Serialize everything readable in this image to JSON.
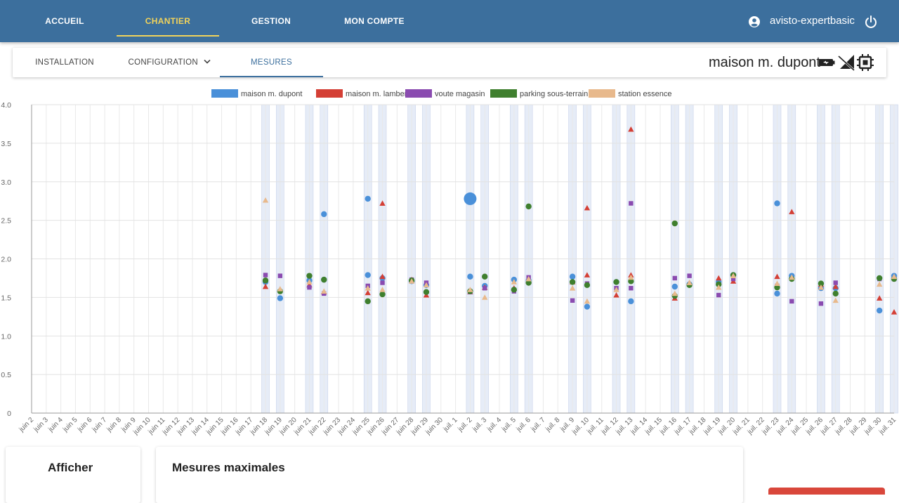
{
  "nav": {
    "items": [
      {
        "label": "ACCUEIL",
        "active": false
      },
      {
        "label": "CHANTIER",
        "active": true
      },
      {
        "label": "GESTION",
        "active": false
      },
      {
        "label": "MON COMPTE",
        "active": false
      }
    ],
    "user": "avisto-expertbasic",
    "icons": [
      "account-circle-icon",
      "power-icon"
    ]
  },
  "subnav": {
    "tabs": [
      {
        "label": "INSTALLATION",
        "active": false
      },
      {
        "label": "CONFIGURATION",
        "active": false,
        "dropdown": true
      },
      {
        "label": "MESURES",
        "active": true
      }
    ],
    "site_name": "maison m. dupont",
    "status_icons": [
      "battery-icon",
      "no-signal-icon",
      "chip-icon"
    ]
  },
  "chart_data": {
    "type": "scatter",
    "ylim": [
      0,
      4.0
    ],
    "yticks": [
      "0",
      "0.5",
      "1.0",
      "1.5",
      "2.0",
      "2.5",
      "3.0",
      "3.5",
      "4.0"
    ],
    "grid": true,
    "legend_position": "top",
    "x_labels": [
      "juin 2",
      "juin 3",
      "juin 4",
      "juin 5",
      "juin 6",
      "juin 7",
      "juin 8",
      "juin 9",
      "juin 10",
      "juin 11",
      "juin 12",
      "juin 13",
      "juin 14",
      "juin 15",
      "juin 16",
      "juin 17",
      "juin 18",
      "juin 19",
      "juin 20",
      "juin 21",
      "juin 22",
      "juin 23",
      "juin 24",
      "juin 25",
      "juin 26",
      "juin 27",
      "juin 28",
      "juin 29",
      "juin 30",
      "juil. 1",
      "juil. 2",
      "juil. 3",
      "juil. 4",
      "juil. 5",
      "juil. 6",
      "juil. 7",
      "juil. 8",
      "juil. 9",
      "juil. 10",
      "juil. 11",
      "juil. 12",
      "juil. 13",
      "juil. 14",
      "juil. 15",
      "juil. 16",
      "juil. 17",
      "juil. 18",
      "juil. 19",
      "juil. 20",
      "juil. 21",
      "juil. 22",
      "juil. 23",
      "juil. 24",
      "juil. 25",
      "juil. 26",
      "juil. 27",
      "juil. 28",
      "juil. 29",
      "juil. 30",
      "juil. 31"
    ],
    "highlight_days": [
      "juin 18",
      "juin 19",
      "juin 21",
      "juin 22",
      "juin 25",
      "juin 26",
      "juin 28",
      "juin 29",
      "juil. 2",
      "juil. 3",
      "juil. 5",
      "juil. 6",
      "juil. 9",
      "juil. 10",
      "juil. 12",
      "juil. 13",
      "juil. 16",
      "juil. 17",
      "juil. 19",
      "juil. 20",
      "juil. 23",
      "juil. 24",
      "juil. 26",
      "juil. 27",
      "juil. 30",
      "juil. 31"
    ],
    "series": [
      {
        "name": "maison m. dupont",
        "color": "#4a90d9",
        "marker": "circle",
        "points": [
          [
            "juin 18",
            1.7
          ],
          [
            "juin 19",
            1.49
          ],
          [
            "juin 21",
            1.72
          ],
          [
            "juin 22",
            2.58
          ],
          [
            "juin 22",
            1.73
          ],
          [
            "juin 25",
            2.78
          ],
          [
            "juin 25",
            1.79
          ],
          [
            "juin 26",
            1.75
          ],
          [
            "juin 28",
            1.71
          ],
          [
            "juin 29",
            1.66
          ],
          [
            "juil. 2",
            2.78,
            "big"
          ],
          [
            "juil. 2",
            1.77
          ],
          [
            "juil. 3",
            1.65
          ],
          [
            "juil. 5",
            1.73
          ],
          [
            "juil. 6",
            1.72
          ],
          [
            "juil. 9",
            1.77
          ],
          [
            "juil. 10",
            1.38
          ],
          [
            "juil. 12",
            1.7
          ],
          [
            "juil. 13",
            1.45
          ],
          [
            "juil. 16",
            1.64
          ],
          [
            "juil. 17",
            1.67
          ],
          [
            "juil. 19",
            1.7
          ],
          [
            "juil. 20",
            1.79
          ],
          [
            "juil. 23",
            2.72
          ],
          [
            "juil. 23",
            1.55
          ],
          [
            "juil. 24",
            1.78
          ],
          [
            "juil. 26",
            1.62
          ],
          [
            "juil. 27",
            1.62
          ],
          [
            "juil. 30",
            1.33
          ],
          [
            "juil. 31",
            1.78
          ]
        ]
      },
      {
        "name": "maison m. lambert",
        "color": "#d43f35",
        "marker": "triangle",
        "points": [
          [
            "juin 18",
            1.64
          ],
          [
            "juin 19",
            1.6
          ],
          [
            "juin 21",
            1.66
          ],
          [
            "juin 22",
            1.57
          ],
          [
            "juin 25",
            1.56
          ],
          [
            "juin 26",
            2.72
          ],
          [
            "juin 26",
            1.77
          ],
          [
            "juin 28",
            1.73
          ],
          [
            "juin 29",
            1.53
          ],
          [
            "juil. 2",
            1.57
          ],
          [
            "juil. 3",
            1.63
          ],
          [
            "juil. 5",
            1.62
          ],
          [
            "juil. 6",
            1.71
          ],
          [
            "juil. 9",
            1.7
          ],
          [
            "juil. 10",
            2.66
          ],
          [
            "juil. 10",
            1.79
          ],
          [
            "juil. 12",
            1.53
          ],
          [
            "juil. 13",
            3.68
          ],
          [
            "juil. 13",
            1.79
          ],
          [
            "juil. 16",
            1.49
          ],
          [
            "juil. 17",
            1.69
          ],
          [
            "juil. 19",
            1.75
          ],
          [
            "juil. 20",
            1.71
          ],
          [
            "juil. 23",
            1.77
          ],
          [
            "juil. 24",
            2.61
          ],
          [
            "juil. 26",
            1.67
          ],
          [
            "juil. 27",
            1.64
          ],
          [
            "juil. 30",
            1.49
          ],
          [
            "juil. 31",
            1.31
          ]
        ]
      },
      {
        "name": "voute magasin",
        "color": "#8a4bb0",
        "marker": "square",
        "points": [
          [
            "juin 18",
            1.79
          ],
          [
            "juin 19",
            1.78
          ],
          [
            "juin 21",
            1.63
          ],
          [
            "juin 22",
            1.55
          ],
          [
            "juin 25",
            1.65
          ],
          [
            "juin 26",
            1.69
          ],
          [
            "juin 28",
            1.73
          ],
          [
            "juin 29",
            1.69
          ],
          [
            "juil. 2",
            1.57
          ],
          [
            "juil. 3",
            1.62
          ],
          [
            "juil. 5",
            1.58
          ],
          [
            "juil. 6",
            1.76
          ],
          [
            "juil. 9",
            1.46
          ],
          [
            "juil. 10",
            1.68
          ],
          [
            "juil. 12",
            1.62
          ],
          [
            "juil. 13",
            2.72
          ],
          [
            "juil. 13",
            1.62
          ],
          [
            "juil. 16",
            1.75
          ],
          [
            "juil. 17",
            1.78
          ],
          [
            "juil. 19",
            1.53
          ],
          [
            "juil. 20",
            1.74
          ],
          [
            "juil. 23",
            1.65
          ],
          [
            "juil. 24",
            1.45
          ],
          [
            "juil. 26",
            1.42
          ],
          [
            "juil. 27",
            1.69
          ],
          [
            "juil. 30",
            1.74
          ],
          [
            "juil. 31",
            1.74
          ]
        ]
      },
      {
        "name": "parking sous-terrain",
        "color": "#3f7f2e",
        "marker": "circle",
        "points": [
          [
            "juin 18",
            1.72
          ],
          [
            "juin 19",
            1.58
          ],
          [
            "juin 21",
            1.78
          ],
          [
            "juin 22",
            1.73
          ],
          [
            "juin 25",
            1.45
          ],
          [
            "juin 26",
            1.54
          ],
          [
            "juin 28",
            1.72
          ],
          [
            "juin 29",
            1.57
          ],
          [
            "juil. 2",
            1.58
          ],
          [
            "juil. 3",
            1.77
          ],
          [
            "juil. 5",
            1.6
          ],
          [
            "juil. 6",
            2.68
          ],
          [
            "juil. 6",
            1.69
          ],
          [
            "juil. 9",
            1.7
          ],
          [
            "juil. 10",
            1.66
          ],
          [
            "juil. 12",
            1.7
          ],
          [
            "juil. 13",
            1.71
          ],
          [
            "juil. 16",
            2.46
          ],
          [
            "juil. 16",
            1.52
          ],
          [
            "juil. 17",
            1.66
          ],
          [
            "juil. 19",
            1.67
          ],
          [
            "juil. 20",
            1.79
          ],
          [
            "juil. 23",
            1.63
          ],
          [
            "juil. 24",
            1.74
          ],
          [
            "juil. 26",
            1.68
          ],
          [
            "juil. 27",
            1.55
          ],
          [
            "juil. 30",
            1.75
          ],
          [
            "juil. 31",
            1.74
          ]
        ]
      },
      {
        "name": "station essence",
        "color": "#e8b98c",
        "marker": "triangle",
        "points": [
          [
            "juin 18",
            2.76
          ],
          [
            "juin 19",
            1.61
          ],
          [
            "juin 21",
            1.7
          ],
          [
            "juin 22",
            1.58
          ],
          [
            "juin 25",
            1.62
          ],
          [
            "juin 26",
            1.6
          ],
          [
            "juin 28",
            1.71
          ],
          [
            "juin 29",
            1.66
          ],
          [
            "juil. 2",
            1.6
          ],
          [
            "juil. 3",
            1.5
          ],
          [
            "juil. 5",
            1.7
          ],
          [
            "juil. 6",
            1.74
          ],
          [
            "juil. 9",
            1.62
          ],
          [
            "juil. 10",
            1.45
          ],
          [
            "juil. 12",
            1.6
          ],
          [
            "juil. 13",
            1.76
          ],
          [
            "juil. 16",
            1.55
          ],
          [
            "juil. 17",
            1.69
          ],
          [
            "juil. 19",
            1.63
          ],
          [
            "juil. 20",
            1.78
          ],
          [
            "juil. 23",
            1.68
          ],
          [
            "juil. 24",
            1.76
          ],
          [
            "juil. 26",
            1.63
          ],
          [
            "juil. 27",
            1.46
          ],
          [
            "juil. 30",
            1.67
          ],
          [
            "juil. 31",
            1.77
          ]
        ]
      }
    ]
  },
  "cards": {
    "afficher_title": "Afficher",
    "mesures_title": "Mesures maximales"
  }
}
